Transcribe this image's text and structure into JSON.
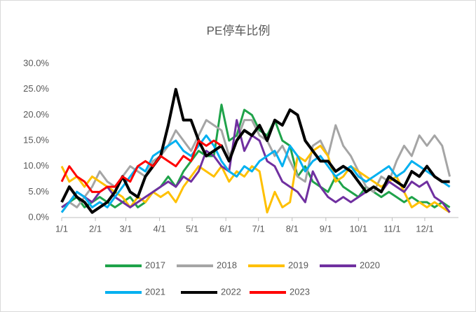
{
  "chart_data": {
    "type": "line",
    "title": "PE停车比例",
    "x": [
      0,
      7,
      14,
      21,
      28,
      35,
      42,
      49,
      56,
      63,
      70,
      77,
      84,
      91,
      98,
      105,
      112,
      119,
      126,
      133,
      140,
      147,
      154,
      161,
      168,
      175,
      182,
      189,
      196,
      203,
      210,
      217,
      224,
      231,
      238,
      245,
      252,
      259,
      266,
      273,
      280,
      287,
      294,
      301,
      308,
      315,
      322,
      329,
      336,
      343,
      350,
      357
    ],
    "xlim": [
      0,
      365
    ],
    "xticks": [
      {
        "value": 0,
        "label": "1/1"
      },
      {
        "value": 31,
        "label": "2/1"
      },
      {
        "value": 59,
        "label": "3/1"
      },
      {
        "value": 90,
        "label": "4/1"
      },
      {
        "value": 120,
        "label": "5/1"
      },
      {
        "value": 151,
        "label": "6/1"
      },
      {
        "value": 181,
        "label": "7/1"
      },
      {
        "value": 212,
        "label": "8/1"
      },
      {
        "value": 243,
        "label": "9/1"
      },
      {
        "value": 273,
        "label": "10/1"
      },
      {
        "value": 304,
        "label": "11/1"
      },
      {
        "value": 334,
        "label": "12/1"
      }
    ],
    "ylim": [
      0,
      30
    ],
    "yticks": [
      {
        "value": 0,
        "label": "0.0%"
      },
      {
        "value": 5,
        "label": "5.0%"
      },
      {
        "value": 10,
        "label": "10.0%"
      },
      {
        "value": 15,
        "label": "15.0%"
      },
      {
        "value": 20,
        "label": "20.0%"
      },
      {
        "value": 25,
        "label": "25.0%"
      },
      {
        "value": 30,
        "label": "30.0%"
      }
    ],
    "series": [
      {
        "name": "2017",
        "color": "#1fa34a",
        "values": [
          2,
          3,
          4,
          2,
          3,
          4,
          3,
          2,
          3,
          4,
          2,
          3,
          5,
          6,
          8,
          6,
          9,
          11,
          13,
          12,
          12,
          22,
          15,
          16,
          21,
          20,
          17,
          16,
          19,
          15,
          14,
          8,
          10,
          7,
          6,
          5,
          8,
          6,
          5,
          4,
          6,
          5,
          4,
          5,
          4,
          3,
          4,
          3,
          3,
          2,
          3,
          2
        ]
      },
      {
        "name": "2018",
        "color": "#a5a5a5",
        "values": [
          1,
          3,
          2,
          4,
          6,
          9,
          7,
          6,
          8,
          10,
          9,
          8,
          11,
          12,
          14,
          17,
          15,
          13,
          16,
          19,
          18,
          17,
          12,
          15,
          19,
          19,
          16,
          15,
          12,
          14,
          11,
          8,
          7,
          14,
          15,
          12,
          18,
          14,
          12,
          9,
          6,
          5,
          8,
          7,
          11,
          14,
          12,
          16,
          14,
          16,
          14,
          8
        ]
      },
      {
        "name": "2019",
        "color": "#ffc000",
        "values": [
          10,
          7,
          8,
          6,
          8,
          7,
          6,
          5,
          4,
          2,
          4,
          3,
          5,
          4,
          5,
          3,
          6,
          8,
          10,
          9,
          8,
          10,
          7,
          9,
          8,
          10,
          9,
          1,
          5,
          2,
          3,
          12,
          11,
          13,
          14,
          12,
          7,
          8,
          10,
          9,
          8,
          7,
          6,
          7,
          8,
          5,
          2,
          3,
          2,
          3,
          2,
          1
        ]
      },
      {
        "name": "2020",
        "color": "#7030a0",
        "values": [
          2,
          3,
          5,
          4,
          3,
          5,
          6,
          4,
          3,
          2,
          3,
          4,
          5,
          6,
          7,
          6,
          8,
          7,
          9,
          13,
          12,
          10,
          9,
          19,
          13,
          16,
          15,
          11,
          10,
          7,
          6,
          5,
          3,
          9,
          6,
          4,
          3,
          4,
          3,
          4,
          5,
          6,
          5,
          7,
          6,
          5,
          7,
          6,
          7,
          4,
          3,
          1
        ]
      },
      {
        "name": "2021",
        "color": "#00b0f0",
        "values": [
          1,
          3,
          5,
          4,
          2,
          3,
          2,
          4,
          6,
          8,
          10,
          9,
          12,
          13,
          14,
          15,
          13,
          12,
          14,
          16,
          14,
          11,
          9,
          8,
          10,
          9,
          11,
          12,
          13,
          10,
          14,
          12,
          9,
          11,
          12,
          10,
          8,
          9,
          10,
          8,
          7,
          8,
          9,
          10,
          8,
          9,
          11,
          10,
          9,
          8,
          7,
          6
        ]
      },
      {
        "name": "2022",
        "color": "#000000",
        "values": [
          3,
          6,
          4,
          3,
          1,
          2,
          3,
          5,
          8,
          5,
          4,
          8,
          10,
          12,
          18,
          25,
          19,
          19,
          15,
          12,
          13,
          14,
          11,
          15,
          17,
          16,
          18,
          15,
          19,
          18,
          21,
          20,
          15,
          13,
          11,
          11,
          9,
          10,
          9,
          7,
          5,
          6,
          5,
          8,
          7,
          6,
          9,
          8,
          10,
          8,
          7,
          7
        ]
      },
      {
        "name": "2023",
        "color": "#ff0000",
        "values": [
          7,
          10,
          8,
          7,
          5,
          5,
          6,
          6,
          8,
          7,
          10,
          11,
          10,
          12,
          11,
          10,
          12,
          11,
          15,
          14,
          15,
          14,
          null,
          null,
          null,
          null,
          null,
          null,
          null,
          null,
          null,
          null,
          null,
          null,
          null,
          null,
          null,
          null,
          null,
          null,
          null,
          null,
          null,
          null,
          null,
          null,
          null,
          null,
          null,
          null,
          null,
          null
        ]
      }
    ]
  }
}
